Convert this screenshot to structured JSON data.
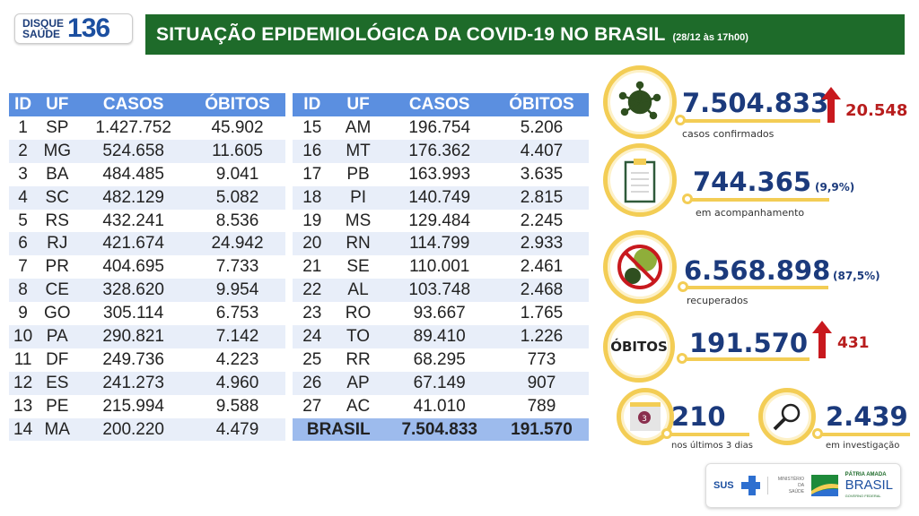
{
  "header": {
    "logo_line1": "DISQUE",
    "logo_line2": "SAÚDE",
    "logo_number": "136",
    "title": "SITUAÇÃO EPIDEMIOLÓGICA DA COVID-19 NO BRASIL",
    "date": "(28/12 às 17h00)"
  },
  "table": {
    "columns": [
      "ID",
      "UF",
      "CASOS",
      "ÓBITOS"
    ],
    "left": [
      [
        "1",
        "SP",
        "1.427.752",
        "45.902"
      ],
      [
        "2",
        "MG",
        "524.658",
        "11.605"
      ],
      [
        "3",
        "BA",
        "484.485",
        "9.041"
      ],
      [
        "4",
        "SC",
        "482.129",
        "5.082"
      ],
      [
        "5",
        "RS",
        "432.241",
        "8.536"
      ],
      [
        "6",
        "RJ",
        "421.674",
        "24.942"
      ],
      [
        "7",
        "PR",
        "404.695",
        "7.733"
      ],
      [
        "8",
        "CE",
        "328.620",
        "9.954"
      ],
      [
        "9",
        "GO",
        "305.114",
        "6.753"
      ],
      [
        "10",
        "PA",
        "290.821",
        "7.142"
      ],
      [
        "11",
        "DF",
        "249.736",
        "4.223"
      ],
      [
        "12",
        "ES",
        "241.273",
        "4.960"
      ],
      [
        "13",
        "PE",
        "215.994",
        "9.588"
      ],
      [
        "14",
        "MA",
        "200.220",
        "4.479"
      ]
    ],
    "right": [
      [
        "15",
        "AM",
        "196.754",
        "5.206"
      ],
      [
        "16",
        "MT",
        "176.362",
        "4.407"
      ],
      [
        "17",
        "PB",
        "163.993",
        "3.635"
      ],
      [
        "18",
        "PI",
        "140.749",
        "2.815"
      ],
      [
        "19",
        "MS",
        "129.484",
        "2.245"
      ],
      [
        "20",
        "RN",
        "114.799",
        "2.933"
      ],
      [
        "21",
        "SE",
        "110.001",
        "2.461"
      ],
      [
        "22",
        "AL",
        "103.748",
        "2.468"
      ],
      [
        "23",
        "RO",
        "93.667",
        "1.765"
      ],
      [
        "24",
        "TO",
        "89.410",
        "1.226"
      ],
      [
        "25",
        "RR",
        "68.295",
        "773"
      ],
      [
        "26",
        "AP",
        "67.149",
        "907"
      ],
      [
        "27",
        "AC",
        "41.010",
        "789"
      ]
    ],
    "total": {
      "label": "BRASIL",
      "casos": "7.504.833",
      "obitos": "191.570"
    }
  },
  "stats": {
    "confirmados": {
      "value": "7.504.833",
      "increase": "20.548",
      "label": "casos confirmados",
      "icon": "virus-icon"
    },
    "acompanhamento": {
      "value": "744.365",
      "pct": "(9,9%)",
      "label": "em acompanhamento",
      "icon": "clipboard-icon"
    },
    "recuperados": {
      "value": "6.568.898",
      "pct": "(87,5%)",
      "label": "recuperados",
      "icon": "no-virus-icon"
    },
    "obitos": {
      "badge": "ÓBITOS",
      "value": "191.570",
      "increase": "431"
    },
    "ultimos": {
      "value": "210",
      "label": "nos últimos 3 dias",
      "calendar_day": "3",
      "icon": "calendar-icon"
    },
    "investigacao": {
      "value": "2.439",
      "label": "em investigação",
      "icon": "magnifier-icon"
    }
  },
  "footer": {
    "sus": "SUS",
    "ministerio1": "MINISTÉRIO DA",
    "ministerio2": "SAÚDE",
    "patria": "PÁTRIA AMADA",
    "brasil": "BRASIL",
    "governo": "GOVERNO FEDERAL"
  },
  "colors": {
    "banner": "#1e6b2a",
    "header": "#5b8fe0",
    "accent": "#f3cd55",
    "navy": "#1b3a7c",
    "red": "#b81d1d"
  }
}
